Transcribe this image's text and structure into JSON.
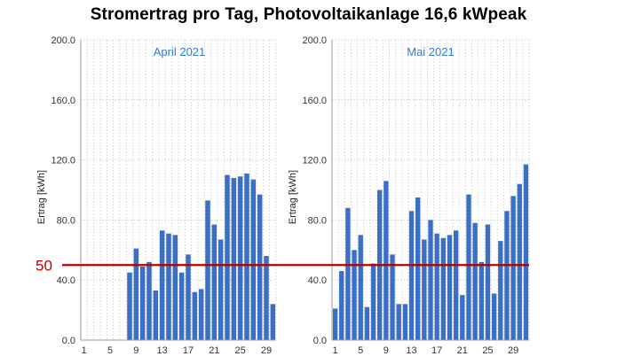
{
  "title": "Stromertrag pro Tag, Photovoltaikanlage 16,6 kWpeak",
  "colors": {
    "bar": "#3b6fc4",
    "reference_line": "#b40000",
    "month_label": "#2e7bd6",
    "grid": "#c8c8c8"
  },
  "reference": {
    "value": 50,
    "label": "50"
  },
  "chart_data": [
    {
      "type": "bar",
      "title": "April 2021",
      "ylabel": "Ertrag [kWh]",
      "xlabel": "",
      "ylim": [
        0,
        200
      ],
      "yticks": [
        "0.0",
        "40.0",
        "80.0",
        "120.0",
        "160.0",
        "200.0"
      ],
      "xticks": [
        "1",
        "5",
        "9",
        "13",
        "17",
        "21",
        "25",
        "29"
      ],
      "grid": true,
      "categories": [
        1,
        2,
        3,
        4,
        5,
        6,
        7,
        8,
        9,
        10,
        11,
        12,
        13,
        14,
        15,
        16,
        17,
        18,
        19,
        20,
        21,
        22,
        23,
        24,
        25,
        26,
        27,
        28,
        29,
        30
      ],
      "values": [
        0,
        0,
        0,
        0,
        0,
        0,
        0,
        45,
        61,
        49,
        52,
        33,
        73,
        71,
        70,
        45,
        57,
        32,
        34,
        93,
        77,
        67,
        110,
        108,
        109,
        111,
        107,
        97,
        56,
        24
      ]
    },
    {
      "type": "bar",
      "title": "Mai 2021",
      "ylabel": "Ertrag [kWh]",
      "xlabel": "",
      "ylim": [
        0,
        200
      ],
      "yticks": [
        "0.0",
        "40.0",
        "80.0",
        "120.0",
        "160.0",
        "200.0"
      ],
      "xticks": [
        "1",
        "5",
        "9",
        "13",
        "17",
        "21",
        "25",
        "29"
      ],
      "grid": true,
      "categories": [
        1,
        2,
        3,
        4,
        5,
        6,
        7,
        8,
        9,
        10,
        11,
        12,
        13,
        14,
        15,
        16,
        17,
        18,
        19,
        20,
        21,
        22,
        23,
        24,
        25,
        26,
        27,
        28,
        29,
        30,
        31
      ],
      "values": [
        21,
        46,
        88,
        60,
        70,
        22,
        51,
        100,
        106,
        57,
        24,
        24,
        86,
        95,
        67,
        80,
        71,
        68,
        70,
        73,
        30,
        97,
        78,
        52,
        77,
        31,
        66,
        86,
        96,
        104,
        117
      ]
    }
  ]
}
